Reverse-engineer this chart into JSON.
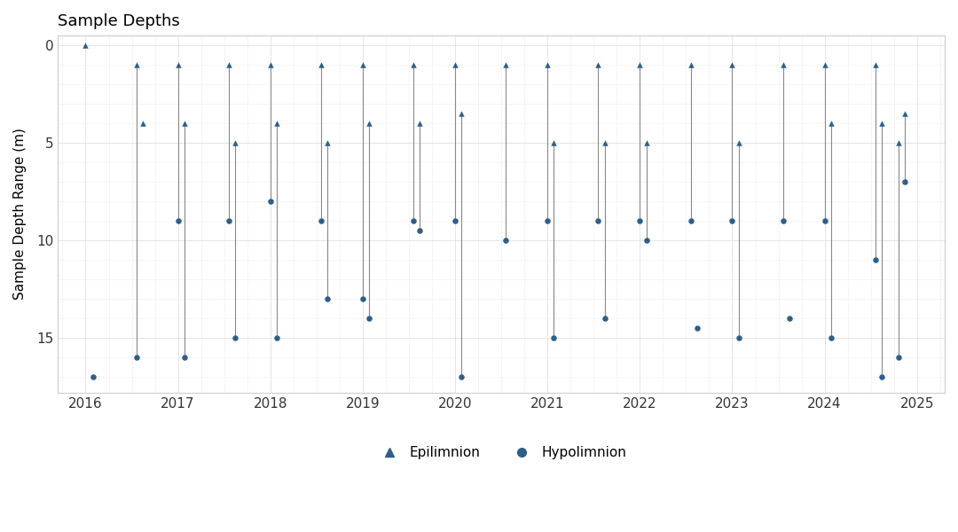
{
  "title": "Sample Depths",
  "ylabel": "Sample Depth Range (m)",
  "marker_color": "#2e5f8a",
  "line_color": "#888888",
  "ylim": [
    17.8,
    -0.5
  ],
  "yticks": [
    0,
    5,
    10,
    15
  ],
  "sampling_events": [
    [
      2016.0,
      0.0,
      null
    ],
    [
      2016.08,
      null,
      17.0
    ],
    [
      2016.55,
      1.0,
      16.0
    ],
    [
      2016.62,
      4.0,
      null
    ],
    [
      2017.0,
      1.0,
      9.0
    ],
    [
      2017.07,
      4.0,
      16.0
    ],
    [
      2017.55,
      1.0,
      9.0
    ],
    [
      2017.62,
      5.0,
      15.0
    ],
    [
      2018.0,
      1.0,
      8.0
    ],
    [
      2018.07,
      4.0,
      15.0
    ],
    [
      2018.55,
      1.0,
      9.0
    ],
    [
      2018.62,
      5.0,
      13.0
    ],
    [
      2019.0,
      1.0,
      13.0
    ],
    [
      2019.07,
      4.0,
      14.0
    ],
    [
      2019.55,
      1.0,
      9.0
    ],
    [
      2019.62,
      4.0,
      9.5
    ],
    [
      2020.0,
      1.0,
      9.0
    ],
    [
      2020.07,
      3.5,
      17.0
    ],
    [
      2020.55,
      1.0,
      10.0
    ],
    [
      2021.0,
      1.0,
      9.0
    ],
    [
      2021.07,
      5.0,
      15.0
    ],
    [
      2021.55,
      1.0,
      9.0
    ],
    [
      2021.62,
      5.0,
      14.0
    ],
    [
      2022.0,
      1.0,
      9.0
    ],
    [
      2022.07,
      5.0,
      10.0
    ],
    [
      2022.55,
      1.0,
      9.0
    ],
    [
      2022.62,
      null,
      14.5
    ],
    [
      2023.0,
      1.0,
      9.0
    ],
    [
      2023.07,
      5.0,
      15.0
    ],
    [
      2023.55,
      1.0,
      9.0
    ],
    [
      2023.62,
      null,
      14.0
    ],
    [
      2024.0,
      1.0,
      9.0
    ],
    [
      2024.07,
      4.0,
      15.0
    ],
    [
      2024.55,
      1.0,
      11.0
    ],
    [
      2024.62,
      4.0,
      17.0
    ],
    [
      2024.8,
      5.0,
      16.0
    ],
    [
      2024.87,
      3.5,
      7.0
    ]
  ],
  "xlim": [
    2015.7,
    2025.3
  ],
  "xticks": [
    2016,
    2017,
    2018,
    2019,
    2020,
    2021,
    2022,
    2023,
    2024,
    2025
  ],
  "figsize": [
    10.8,
    6.0
  ],
  "dpi": 100
}
